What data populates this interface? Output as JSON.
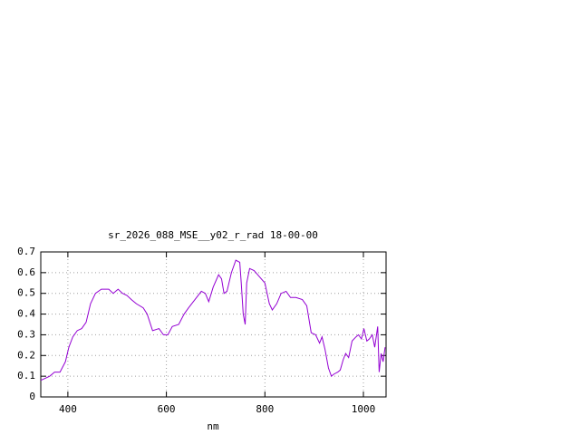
{
  "chart_data": {
    "type": "line",
    "title": "sr_2026_088_MSE__y02_r_rad 18-00-00",
    "x_label": "nm",
    "x": [
      345,
      363,
      373,
      384,
      395,
      402,
      410,
      419,
      428,
      437,
      446,
      456,
      468,
      483,
      492,
      502,
      511,
      520,
      529,
      539,
      553,
      561,
      572,
      585,
      594,
      603,
      612,
      625,
      636,
      645,
      658,
      671,
      679,
      686,
      695,
      706,
      712,
      717,
      723,
      732,
      741,
      749,
      752,
      756,
      760,
      763,
      769,
      778,
      789,
      800,
      809,
      815,
      824,
      833,
      843,
      852,
      863,
      876,
      885,
      894,
      903,
      911,
      916,
      922,
      929,
      935,
      940,
      948,
      953,
      959,
      964,
      970,
      977,
      985,
      990,
      996,
      1001,
      1007,
      1012,
      1018,
      1023,
      1029,
      1032,
      1036,
      1040,
      1044
    ],
    "series": [
      {
        "name": "sr_2026_088_MSE__y02_r_rad 18-00-00",
        "color": "#9400d3",
        "values": [
          0.08,
          0.1,
          0.12,
          0.12,
          0.17,
          0.24,
          0.29,
          0.32,
          0.33,
          0.36,
          0.45,
          0.5,
          0.52,
          0.52,
          0.5,
          0.52,
          0.5,
          0.49,
          0.47,
          0.45,
          0.43,
          0.4,
          0.32,
          0.33,
          0.3,
          0.3,
          0.34,
          0.35,
          0.4,
          0.43,
          0.47,
          0.51,
          0.5,
          0.46,
          0.53,
          0.59,
          0.57,
          0.5,
          0.51,
          0.6,
          0.66,
          0.65,
          0.55,
          0.4,
          0.35,
          0.55,
          0.62,
          0.61,
          0.58,
          0.55,
          0.45,
          0.42,
          0.45,
          0.5,
          0.51,
          0.48,
          0.48,
          0.47,
          0.44,
          0.31,
          0.3,
          0.26,
          0.29,
          0.23,
          0.14,
          0.1,
          0.11,
          0.12,
          0.13,
          0.18,
          0.21,
          0.19,
          0.27,
          0.29,
          0.3,
          0.28,
          0.33,
          0.27,
          0.28,
          0.3,
          0.24,
          0.34,
          0.12,
          0.21,
          0.17,
          0.24
        ]
      }
    ],
    "xlim": [
      345,
      1046
    ],
    "ylim": [
      0,
      0.7
    ],
    "xticks": [
      400,
      600,
      800,
      1000
    ],
    "yticks": [
      0,
      0.1,
      0.2,
      0.3,
      0.4,
      0.5,
      0.6,
      0.7
    ],
    "grid": true
  }
}
